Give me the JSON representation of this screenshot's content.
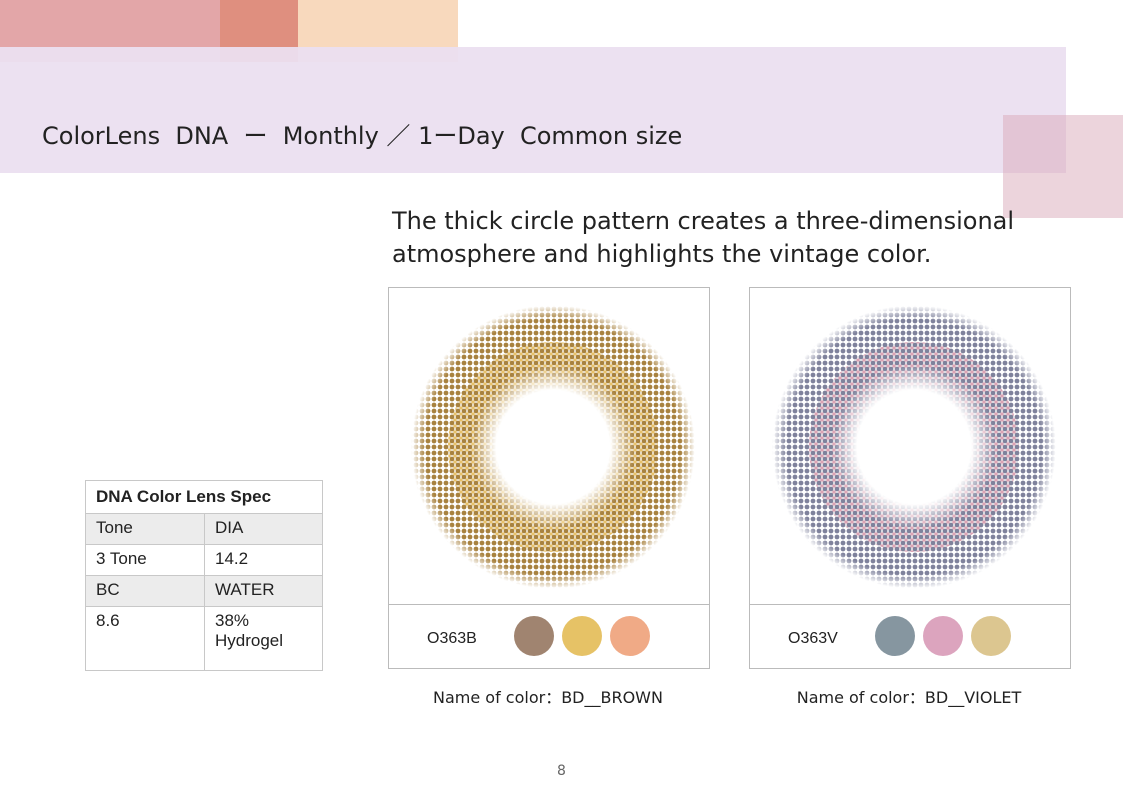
{
  "header": {
    "title": "ColorLens  DNA  ー  Monthly ／ 1ーDay  Common size"
  },
  "description": [
    "The thick circle pattern creates a three-dimensional",
    "atmosphere and highlights the vintage color."
  ],
  "spec": {
    "title": "DNA Color Lens Spec",
    "rows": [
      [
        "Tone",
        "DIA"
      ],
      [
        "3 Tone",
        "14.2"
      ],
      [
        "BC",
        "WATER"
      ],
      [
        "8.6",
        "38% Hydrogel"
      ]
    ]
  },
  "lenses": [
    {
      "code": "O363B",
      "name": "Name of color：BD__BROWN",
      "ring_colors": [
        "#a8823f",
        "#e6c06a"
      ],
      "swatches": [
        "#a08470",
        "#e6c266",
        "#f0aa86"
      ]
    },
    {
      "code": "O363V",
      "name": "Name of color：BD__VIOLET",
      "ring_colors": [
        "#7f829c",
        "#d9a3b4"
      ],
      "swatches": [
        "#8696a0",
        "#dca4be",
        "#dcc690"
      ]
    }
  ],
  "page_number": "8"
}
